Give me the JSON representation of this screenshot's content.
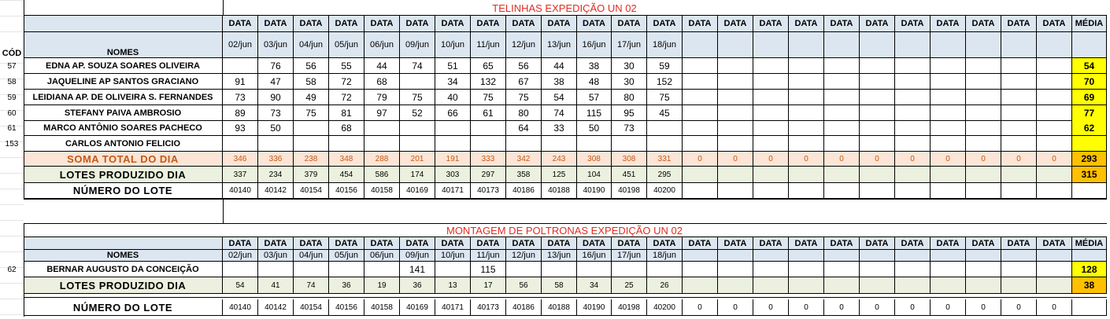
{
  "colors": {
    "title": "#e02b20",
    "header_bg": "#dce6f1",
    "soma_bg": "#fce4d6",
    "soma_text": "#c65911",
    "lotes_bg": "#ebf1de",
    "avg_yellow": "#ffff00",
    "avg_orange": "#ffc000"
  },
  "section1": {
    "title": "TELINHAS EXPEDIÇÃO UN 02",
    "header": {
      "cod_label": "CÓD",
      "names_label": "NOMES",
      "data_label": "DATA",
      "media_label": "MÉDIA",
      "dates": [
        "02/jun",
        "03/jun",
        "04/jun",
        "05/jun",
        "06/jun",
        "09/jun",
        "10/jun",
        "11/jun",
        "12/jun",
        "13/jun",
        "16/jun",
        "17/jun",
        "18/jun",
        "",
        "",
        "",
        "",
        "",
        "",
        "",
        "",
        "",
        "",
        ""
      ]
    },
    "rows": [
      {
        "code": "57",
        "name": "EDNA AP. SOUZA SOARES OLIVEIRA",
        "values": [
          "",
          "76",
          "56",
          "55",
          "44",
          "74",
          "51",
          "65",
          "56",
          "44",
          "38",
          "30",
          "59"
        ],
        "avg": "54"
      },
      {
        "code": "58",
        "name": "JAQUELINE AP SANTOS GRACIANO",
        "values": [
          "91",
          "47",
          "58",
          "72",
          "68",
          "",
          "34",
          "132",
          "67",
          "38",
          "48",
          "30",
          "152"
        ],
        "avg": "70"
      },
      {
        "code": "59",
        "name": "LEIDIANA AP. DE OLIVEIRA S. FERNANDES",
        "values": [
          "73",
          "90",
          "49",
          "72",
          "79",
          "75",
          "40",
          "75",
          "75",
          "54",
          "57",
          "80",
          "75"
        ],
        "avg": "69"
      },
      {
        "code": "60",
        "name": "STEFANY PAIVA AMBROSIO",
        "values": [
          "89",
          "73",
          "75",
          "81",
          "97",
          "52",
          "66",
          "61",
          "80",
          "74",
          "115",
          "95",
          "45"
        ],
        "avg": "77"
      },
      {
        "code": "61",
        "name": "MARCO ANTÔNIO SOARES PACHECO",
        "values": [
          "93",
          "50",
          "",
          "68",
          "",
          "",
          "",
          "",
          "64",
          "33",
          "50",
          "73",
          ""
        ],
        "avg": "62"
      },
      {
        "code": "153",
        "name": "CARLOS ANTONIO FELICIO",
        "values": [
          "",
          "",
          "",
          "",
          "",
          "",
          "",
          "",
          "",
          "",
          "",
          "",
          ""
        ],
        "avg": ""
      }
    ],
    "soma": {
      "label": "SOMA TOTAL DO DIA",
      "values": [
        "346",
        "336",
        "238",
        "348",
        "288",
        "201",
        "191",
        "333",
        "342",
        "243",
        "308",
        "308",
        "331",
        "0",
        "0",
        "0",
        "0",
        "0",
        "0",
        "0",
        "0",
        "0",
        "0",
        "0"
      ],
      "avg": "293"
    },
    "lotes": {
      "label": "LOTES PRODUZIDO DIA",
      "values": [
        "337",
        "234",
        "379",
        "454",
        "586",
        "174",
        "303",
        "297",
        "358",
        "125",
        "104",
        "451",
        "295",
        "",
        "",
        "",
        "",
        "",
        "",
        "",
        "",
        "",
        "",
        ""
      ],
      "avg": "315"
    },
    "numero": {
      "label": "NÚMERO DO LOTE",
      "values": [
        "40140",
        "40142",
        "40154",
        "40156",
        "40158",
        "40169",
        "40171",
        "40173",
        "40186",
        "40188",
        "40190",
        "40198",
        "40200",
        "",
        "",
        "",
        "",
        "",
        "",
        "",
        "",
        "",
        "",
        ""
      ]
    }
  },
  "section2": {
    "title": "MONTAGEM DE POLTRONAS EXPEDIÇÃO UN 02",
    "header": {
      "names_label": "NOMES",
      "data_label": "DATA",
      "media_label": "MÉDIA",
      "dates": [
        "02/jun",
        "03/jun",
        "04/jun",
        "05/jun",
        "06/jun",
        "09/jun",
        "10/jun",
        "11/jun",
        "12/jun",
        "13/jun",
        "16/jun",
        "17/jun",
        "18/jun",
        "",
        "",
        "",
        "",
        "",
        "",
        "",
        "",
        "",
        "",
        ""
      ]
    },
    "rows": [
      {
        "code": "62",
        "name": "BERNAR AUGUSTO DA CONCEIÇÃO",
        "values": [
          "",
          "",
          "",
          "",
          "",
          "141",
          "",
          "115",
          "",
          "",
          "",
          "",
          ""
        ],
        "avg": "128"
      }
    ],
    "lotes": {
      "label": "LOTES PRODUZIDO DIA",
      "values": [
        "54",
        "41",
        "74",
        "36",
        "19",
        "36",
        "13",
        "17",
        "56",
        "58",
        "34",
        "25",
        "26",
        "",
        "",
        "",
        "",
        "",
        "",
        "",
        "",
        "",
        "",
        ""
      ],
      "avg": "38"
    },
    "numero": {
      "label": "NÚMERO DO LOTE",
      "values": [
        "40140",
        "40142",
        "40154",
        "40156",
        "40158",
        "40169",
        "40171",
        "40173",
        "40186",
        "40188",
        "40190",
        "40198",
        "40200",
        "0",
        "0",
        "0",
        "0",
        "0",
        "0",
        "0",
        "0",
        "0",
        "0",
        "0"
      ]
    }
  }
}
